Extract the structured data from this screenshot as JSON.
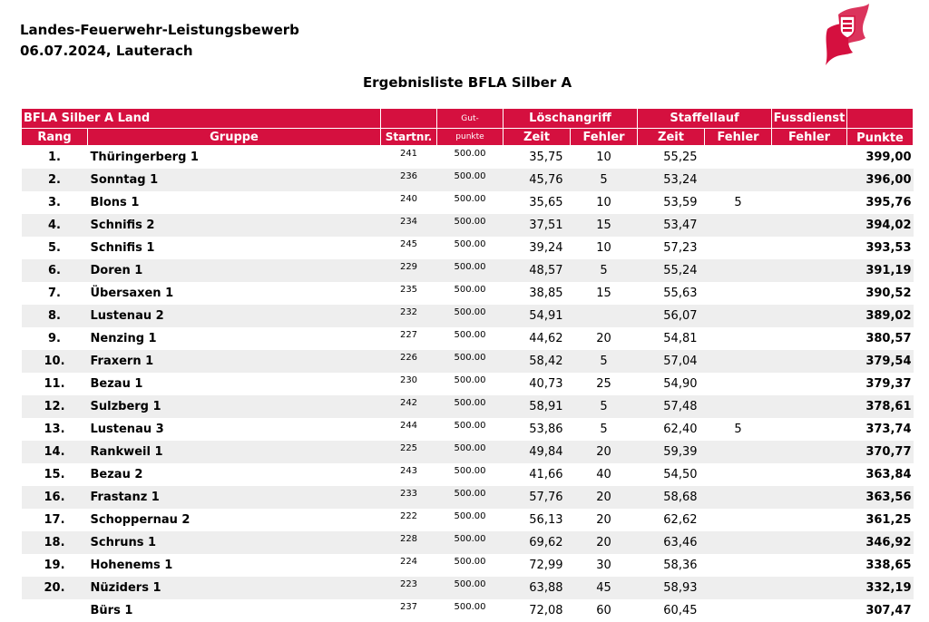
{
  "header": {
    "line1": "Landes-Feuerwehr-Leistungsbewerb",
    "line2": "06.07.2024, Lauterach",
    "title": "Ergebnisliste BFLA Silber A"
  },
  "logo": {
    "icon": "coat-of-arms-flag-logo",
    "color": "#d5103f"
  },
  "colors": {
    "header_bg": "#d5103f",
    "stripe": "#eeeeee"
  },
  "table": {
    "group_header": {
      "category": "BFLA Silber A Land",
      "gut": "Gut-",
      "loeschangriff": "Löschangriff",
      "staffellauf": "Staffellauf",
      "fussdienst": "Fussdienst"
    },
    "columns": {
      "rang": "Rang",
      "gruppe": "Gruppe",
      "startnr": "Startnr.",
      "punkte_gut": "punkte",
      "la_zeit": "Zeit",
      "la_fehler": "Fehler",
      "sl_zeit": "Zeit",
      "sl_fehler": "Fehler",
      "fd_fehler": "Fehler",
      "punkte": "Punkte"
    },
    "rows": [
      {
        "rang": "1.",
        "gruppe": "Thüringerberg 1",
        "startnr": "241",
        "gut": "500.00",
        "la_zeit": "35,75",
        "la_fehler": "10",
        "sl_zeit": "55,25",
        "sl_fehler": "",
        "fd_fehler": "",
        "punkte": "399,00"
      },
      {
        "rang": "2.",
        "gruppe": "Sonntag 1",
        "startnr": "236",
        "gut": "500.00",
        "la_zeit": "45,76",
        "la_fehler": "5",
        "sl_zeit": "53,24",
        "sl_fehler": "",
        "fd_fehler": "",
        "punkte": "396,00"
      },
      {
        "rang": "3.",
        "gruppe": "Blons 1",
        "startnr": "240",
        "gut": "500.00",
        "la_zeit": "35,65",
        "la_fehler": "10",
        "sl_zeit": "53,59",
        "sl_fehler": "5",
        "fd_fehler": "",
        "punkte": "395,76"
      },
      {
        "rang": "4.",
        "gruppe": "Schnifis 2",
        "startnr": "234",
        "gut": "500.00",
        "la_zeit": "37,51",
        "la_fehler": "15",
        "sl_zeit": "53,47",
        "sl_fehler": "",
        "fd_fehler": "",
        "punkte": "394,02"
      },
      {
        "rang": "5.",
        "gruppe": "Schnifis 1",
        "startnr": "245",
        "gut": "500.00",
        "la_zeit": "39,24",
        "la_fehler": "10",
        "sl_zeit": "57,23",
        "sl_fehler": "",
        "fd_fehler": "",
        "punkte": "393,53"
      },
      {
        "rang": "6.",
        "gruppe": "Doren 1",
        "startnr": "229",
        "gut": "500.00",
        "la_zeit": "48,57",
        "la_fehler": "5",
        "sl_zeit": "55,24",
        "sl_fehler": "",
        "fd_fehler": "",
        "punkte": "391,19"
      },
      {
        "rang": "7.",
        "gruppe": "Übersaxen 1",
        "startnr": "235",
        "gut": "500.00",
        "la_zeit": "38,85",
        "la_fehler": "15",
        "sl_zeit": "55,63",
        "sl_fehler": "",
        "fd_fehler": "",
        "punkte": "390,52"
      },
      {
        "rang": "8.",
        "gruppe": "Lustenau 2",
        "startnr": "232",
        "gut": "500.00",
        "la_zeit": "54,91",
        "la_fehler": "",
        "sl_zeit": "56,07",
        "sl_fehler": "",
        "fd_fehler": "",
        "punkte": "389,02"
      },
      {
        "rang": "9.",
        "gruppe": "Nenzing 1",
        "startnr": "227",
        "gut": "500.00",
        "la_zeit": "44,62",
        "la_fehler": "20",
        "sl_zeit": "54,81",
        "sl_fehler": "",
        "fd_fehler": "",
        "punkte": "380,57"
      },
      {
        "rang": "10.",
        "gruppe": "Fraxern 1",
        "startnr": "226",
        "gut": "500.00",
        "la_zeit": "58,42",
        "la_fehler": "5",
        "sl_zeit": "57,04",
        "sl_fehler": "",
        "fd_fehler": "",
        "punkte": "379,54"
      },
      {
        "rang": "11.",
        "gruppe": "Bezau 1",
        "startnr": "230",
        "gut": "500.00",
        "la_zeit": "40,73",
        "la_fehler": "25",
        "sl_zeit": "54,90",
        "sl_fehler": "",
        "fd_fehler": "",
        "punkte": "379,37"
      },
      {
        "rang": "12.",
        "gruppe": "Sulzberg 1",
        "startnr": "242",
        "gut": "500.00",
        "la_zeit": "58,91",
        "la_fehler": "5",
        "sl_zeit": "57,48",
        "sl_fehler": "",
        "fd_fehler": "",
        "punkte": "378,61"
      },
      {
        "rang": "13.",
        "gruppe": "Lustenau 3",
        "startnr": "244",
        "gut": "500.00",
        "la_zeit": "53,86",
        "la_fehler": "5",
        "sl_zeit": "62,40",
        "sl_fehler": "5",
        "fd_fehler": "",
        "punkte": "373,74"
      },
      {
        "rang": "14.",
        "gruppe": "Rankweil 1",
        "startnr": "225",
        "gut": "500.00",
        "la_zeit": "49,84",
        "la_fehler": "20",
        "sl_zeit": "59,39",
        "sl_fehler": "",
        "fd_fehler": "",
        "punkte": "370,77"
      },
      {
        "rang": "15.",
        "gruppe": "Bezau 2",
        "startnr": "243",
        "gut": "500.00",
        "la_zeit": "41,66",
        "la_fehler": "40",
        "sl_zeit": "54,50",
        "sl_fehler": "",
        "fd_fehler": "",
        "punkte": "363,84"
      },
      {
        "rang": "16.",
        "gruppe": "Frastanz 1",
        "startnr": "233",
        "gut": "500.00",
        "la_zeit": "57,76",
        "la_fehler": "20",
        "sl_zeit": "58,68",
        "sl_fehler": "",
        "fd_fehler": "",
        "punkte": "363,56"
      },
      {
        "rang": "17.",
        "gruppe": "Schoppernau 2",
        "startnr": "222",
        "gut": "500.00",
        "la_zeit": "56,13",
        "la_fehler": "20",
        "sl_zeit": "62,62",
        "sl_fehler": "",
        "fd_fehler": "",
        "punkte": "361,25"
      },
      {
        "rang": "18.",
        "gruppe": "Schruns 1",
        "startnr": "228",
        "gut": "500.00",
        "la_zeit": "69,62",
        "la_fehler": "20",
        "sl_zeit": "63,46",
        "sl_fehler": "",
        "fd_fehler": "",
        "punkte": "346,92"
      },
      {
        "rang": "19.",
        "gruppe": "Hohenems 1",
        "startnr": "224",
        "gut": "500.00",
        "la_zeit": "72,99",
        "la_fehler": "30",
        "sl_zeit": "58,36",
        "sl_fehler": "",
        "fd_fehler": "",
        "punkte": "338,65"
      },
      {
        "rang": "20.",
        "gruppe": "Nüziders 1",
        "startnr": "223",
        "gut": "500.00",
        "la_zeit": "63,88",
        "la_fehler": "45",
        "sl_zeit": "58,93",
        "sl_fehler": "",
        "fd_fehler": "",
        "punkte": "332,19"
      },
      {
        "rang": "",
        "gruppe": "Bürs 1",
        "startnr": "237",
        "gut": "500.00",
        "la_zeit": "72,08",
        "la_fehler": "60",
        "sl_zeit": "60,45",
        "sl_fehler": "",
        "fd_fehler": "",
        "punkte": "307,47"
      }
    ]
  }
}
